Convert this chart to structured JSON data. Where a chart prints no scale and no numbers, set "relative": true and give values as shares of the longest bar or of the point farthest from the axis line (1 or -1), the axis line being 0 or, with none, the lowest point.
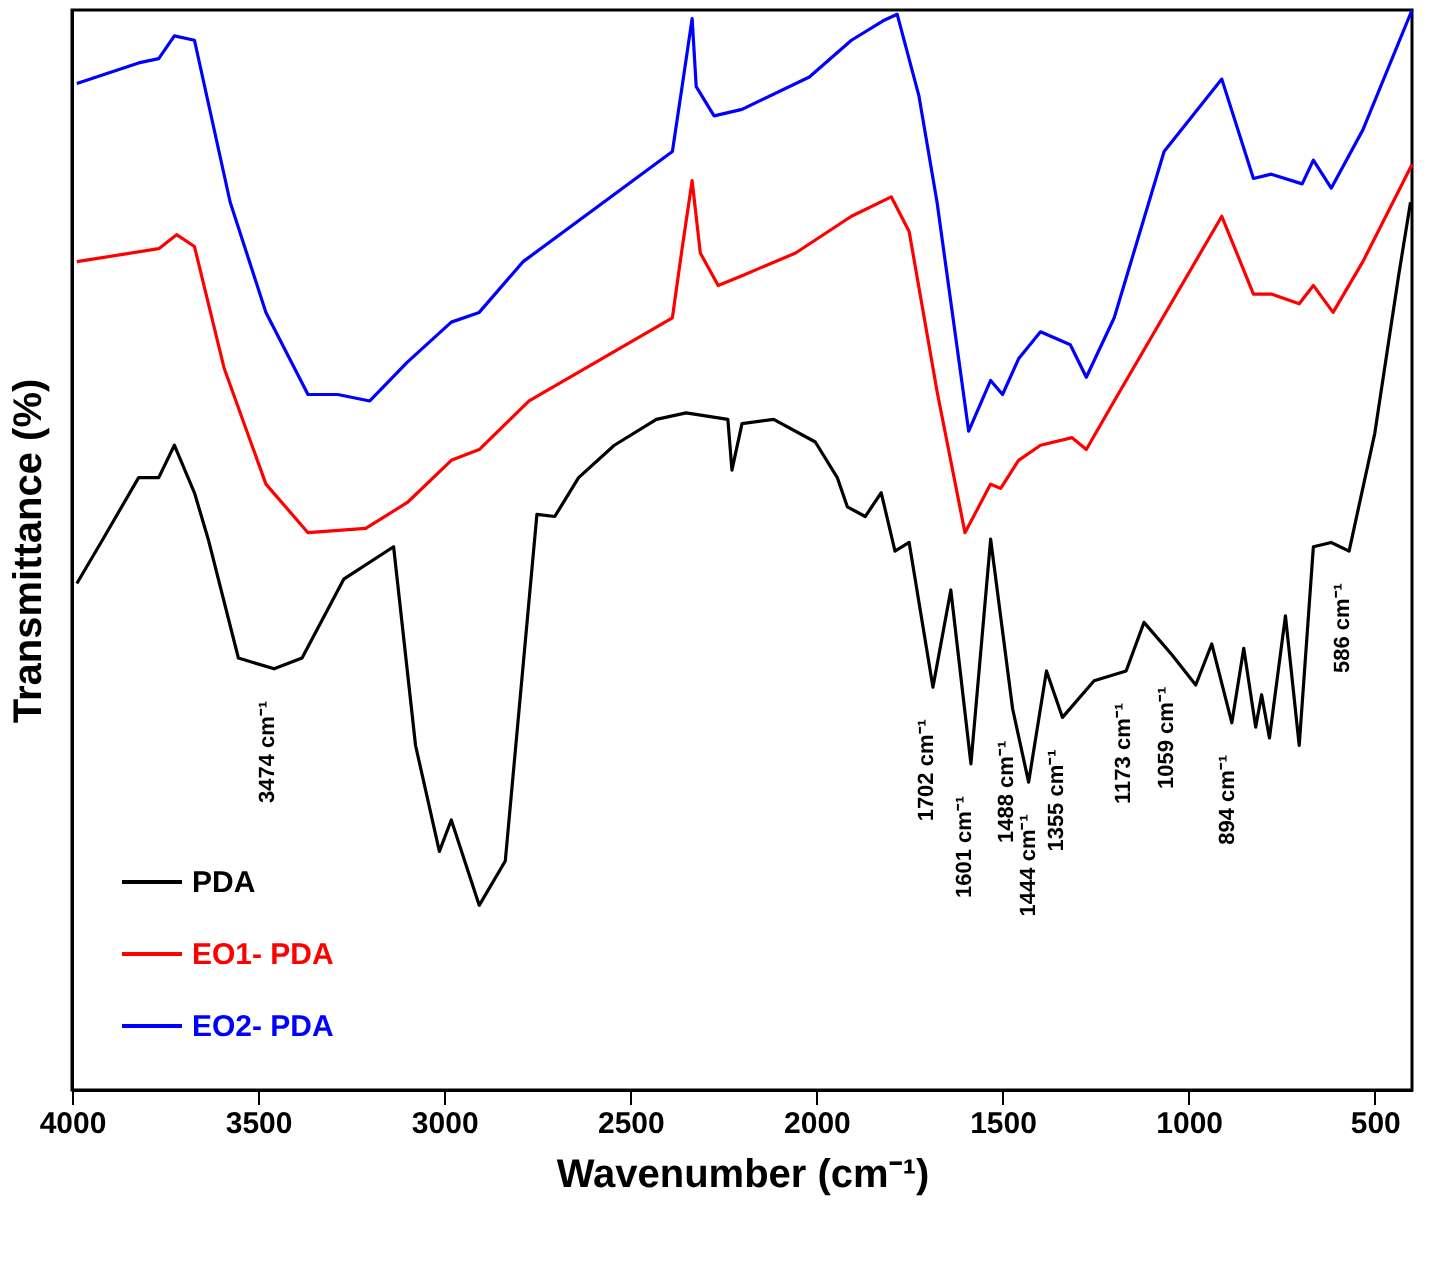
{
  "chart_data": {
    "type": "line",
    "xlabel": "Wavenumber (cm⁻¹)",
    "ylabel": "Transmittance (%)",
    "relative": true,
    "xlim": [
      4000,
      400
    ],
    "xticks": [
      4000,
      3500,
      3000,
      2500,
      2000,
      1500,
      1000,
      500
    ],
    "legend": "bottom left",
    "grid": false,
    "series": [
      {
        "name": "PDA",
        "color": "#000000",
        "x": [
          3987,
          3917,
          3821,
          3767,
          3725,
          3671,
          3634,
          3553,
          3457,
          3382,
          3270,
          3136,
          3077,
          3013,
          2981,
          2906,
          2836,
          2751,
          2703,
          2639,
          2543,
          2430,
          2350,
          2238,
          2227,
          2200,
          2115,
          2003,
          1944,
          1917,
          1869,
          1826,
          1789,
          1751,
          1687,
          1639,
          1585,
          1532,
          1473,
          1430,
          1382,
          1339,
          1254,
          1168,
          1120,
          1045,
          981,
          938,
          884,
          852,
          820,
          804,
          783,
          740,
          703,
          665,
          617,
          569,
          500,
          436,
          404
        ],
        "values": [
          0.469,
          0.51,
          0.567,
          0.567,
          0.597,
          0.553,
          0.51,
          0.4,
          0.39,
          0.4,
          0.473,
          0.503,
          0.319,
          0.221,
          0.25,
          0.171,
          0.212,
          0.533,
          0.531,
          0.567,
          0.597,
          0.621,
          0.627,
          0.621,
          0.574,
          0.617,
          0.621,
          0.6,
          0.567,
          0.54,
          0.531,
          0.553,
          0.499,
          0.507,
          0.373,
          0.463,
          0.302,
          0.51,
          0.353,
          0.285,
          0.388,
          0.345,
          0.379,
          0.388,
          0.433,
          0.403,
          0.375,
          0.413,
          0.34,
          0.409,
          0.336,
          0.366,
          0.326,
          0.439,
          0.319,
          0.503,
          0.507,
          0.499,
          0.608,
          0.754,
          0.822
        ]
      },
      {
        "name": "EO1- PDA",
        "color": "#ff0000",
        "x": [
          3987,
          3767,
          3719,
          3671,
          3591,
          3479,
          3366,
          3211,
          3099,
          2981,
          2906,
          2772,
          2387,
          2361,
          2334,
          2312,
          2264,
          2200,
          2056,
          1906,
          1799,
          1751,
          1676,
          1601,
          1532,
          1505,
          1457,
          1398,
          1313,
          1275,
          1200,
          911,
          826,
          778,
          703,
          665,
          612,
          532,
          400
        ],
        "values": [
          0.767,
          0.779,
          0.792,
          0.781,
          0.668,
          0.561,
          0.516,
          0.52,
          0.544,
          0.583,
          0.593,
          0.638,
          0.715,
          0.779,
          0.842,
          0.775,
          0.745,
          0.754,
          0.775,
          0.809,
          0.827,
          0.795,
          0.647,
          0.516,
          0.561,
          0.557,
          0.583,
          0.597,
          0.604,
          0.593,
          0.638,
          0.809,
          0.737,
          0.737,
          0.728,
          0.745,
          0.72,
          0.767,
          0.857
        ]
      },
      {
        "name": "EO2- PDA",
        "color": "#0000ff",
        "x": [
          3987,
          3821,
          3767,
          3725,
          3671,
          3575,
          3479,
          3366,
          3286,
          3200,
          3099,
          2981,
          2906,
          2788,
          2387,
          2361,
          2334,
          2323,
          2275,
          2200,
          2019,
          1906,
          1821,
          1783,
          1725,
          1676,
          1591,
          1532,
          1500,
          1457,
          1398,
          1318,
          1275,
          1200,
          1066,
          911,
          826,
          778,
          695,
          665,
          617,
          532,
          400
        ],
        "values": [
          0.932,
          0.951,
          0.955,
          0.976,
          0.972,
          0.822,
          0.72,
          0.644,
          0.644,
          0.638,
          0.674,
          0.711,
          0.72,
          0.767,
          0.869,
          0.929,
          0.992,
          0.929,
          0.902,
          0.908,
          0.938,
          0.972,
          0.99,
          0.996,
          0.921,
          0.822,
          0.61,
          0.657,
          0.644,
          0.677,
          0.702,
          0.69,
          0.66,
          0.715,
          0.869,
          0.936,
          0.844,
          0.848,
          0.839,
          0.861,
          0.835,
          0.889,
          1.0
        ]
      }
    ],
    "annotations": [
      {
        "text": "3474 cm⁻¹",
        "x": 3474,
        "y": 0.39
      },
      {
        "text": "1702 cm⁻¹",
        "x": 1702,
        "y": 0.373
      },
      {
        "text": "1601 cm⁻¹",
        "x": 1601,
        "y": 0.302
      },
      {
        "text": "1488 cm⁻¹",
        "x": 1488,
        "y": 0.353
      },
      {
        "text": "1444 cm⁻¹",
        "x": 1444,
        "y": 0.285
      },
      {
        "text": "1355 cm⁻¹",
        "x": 1355,
        "y": 0.345
      },
      {
        "text": "1173 cm⁻¹",
        "x": 1173,
        "y": 0.388
      },
      {
        "text": "1059 cm⁻¹",
        "x": 1059,
        "y": 0.403
      },
      {
        "text": "894 cm⁻¹",
        "x": 894,
        "y": 0.34
      },
      {
        "text": "586 cm⁻¹",
        "x": 586,
        "y": 0.499
      }
    ]
  }
}
